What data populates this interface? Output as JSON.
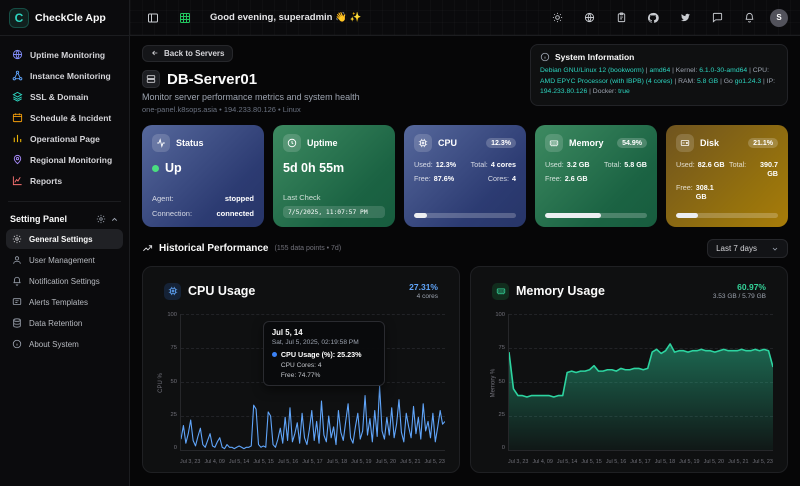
{
  "app": {
    "name": "CheckCle App",
    "logo_letter": "C"
  },
  "sidebar": {
    "nav": [
      {
        "label": "Uptime Monitoring",
        "icon": "globe-icon"
      },
      {
        "label": "Instance Monitoring",
        "icon": "nodes-icon"
      },
      {
        "label": "SSL & Domain",
        "icon": "layers-icon"
      },
      {
        "label": "Schedule & Incident",
        "icon": "calendar-icon"
      },
      {
        "label": "Operational Page",
        "icon": "bar-chart-icon"
      },
      {
        "label": "Regional Monitoring",
        "icon": "map-pin-icon"
      },
      {
        "label": "Reports",
        "icon": "report-chart-icon"
      }
    ],
    "settings_header": "Setting Panel",
    "settings": [
      {
        "label": "General Settings",
        "icon": "gear-icon",
        "active": true
      },
      {
        "label": "User Management",
        "icon": "user-icon",
        "active": false
      },
      {
        "label": "Notification Settings",
        "icon": "bell-icon",
        "active": false
      },
      {
        "label": "Alerts Templates",
        "icon": "template-icon",
        "active": false
      },
      {
        "label": "Data Retention",
        "icon": "database-icon",
        "active": false
      },
      {
        "label": "About System",
        "icon": "info-icon",
        "active": false
      }
    ]
  },
  "header": {
    "greeting": "Good evening, superadmin 👋 ✨",
    "avatar_initial": "S"
  },
  "page": {
    "back_button": "Back to Servers",
    "server_name": "DB-Server01",
    "subtitle": "Monitor server performance metrics and system health",
    "meta": "one-panel.k8sops.asia • 194.233.80.126 • Linux",
    "system_info": {
      "title": "System Information",
      "segments": [
        {
          "text": "Debian GNU/Linux 12 (bookworm)",
          "hl": true
        },
        {
          "text": " | ",
          "hl": false
        },
        {
          "text": "amd64",
          "hl": true
        },
        {
          "text": " | Kernel: ",
          "hl": false
        },
        {
          "text": "6.1.0-30-amd64",
          "hl": true
        },
        {
          "text": " | CPU: ",
          "hl": false
        },
        {
          "text": "AMD EPYC Processor (with IBPB) (4 cores)",
          "hl": true
        },
        {
          "text": " | RAM: ",
          "hl": false
        },
        {
          "text": "5.8 GB",
          "hl": true
        },
        {
          "text": " | Go ",
          "hl": false
        },
        {
          "text": "go1.24.3",
          "hl": true
        },
        {
          "text": " | IP: ",
          "hl": false
        },
        {
          "text": "194.233.80.126",
          "hl": true
        },
        {
          "text": " | Docker: ",
          "hl": false
        },
        {
          "text": "true",
          "hl": true
        }
      ]
    }
  },
  "cards": {
    "status": {
      "title": "Status",
      "value": "Up",
      "agent_label": "Agent:",
      "agent": "stopped",
      "conn_label": "Connection:",
      "conn": "connected"
    },
    "uptime": {
      "title": "Uptime",
      "value": "5d 0h 55m",
      "last_check_label": "Last Check",
      "last_check": "7/5/2025, 11:07:57 PM"
    },
    "cpu": {
      "title": "CPU",
      "badge": "12.3%",
      "used_label": "Used:",
      "used": "12.3%",
      "total_label": "Total:",
      "total": "4 cores",
      "free_label": "Free:",
      "free": "87.6%",
      "cores_label": "Cores:",
      "cores": "4",
      "progress": 12.3
    },
    "memory": {
      "title": "Memory",
      "badge": "54.9%",
      "used_label": "Used:",
      "used": "3.2 GB",
      "total_label": "Total:",
      "total": "5.8 GB",
      "free_label": "Free:",
      "free": "2.6 GB",
      "progress": 54.9
    },
    "disk": {
      "title": "Disk",
      "badge": "21.1%",
      "used_label": "Used:",
      "used": "82.6 GB",
      "total_label": "Total:",
      "total": "390.7 GB",
      "free_label": "Free:",
      "free": "308.1 GB",
      "progress": 21.1
    }
  },
  "history": {
    "title": "Historical Performance",
    "subtitle": "(155 data points • 7d)",
    "range": "Last 7 days"
  },
  "chart_data": [
    {
      "type": "line",
      "title": "CPU Usage",
      "stat": "27.31%",
      "stat_sub": "4 cores",
      "ylabel": "CPU %",
      "ylim": [
        0,
        100
      ],
      "yticks": [
        100,
        75,
        50,
        25,
        0
      ],
      "grid": true,
      "color": "#60a5fa",
      "x_labels": [
        "Jul 3, 23",
        "Jul 4, 09",
        "Jul 5, 14",
        "Jul 5, 15",
        "Jul 5, 16",
        "Jul 5, 17",
        "Jul 5, 18",
        "Jul 5, 19",
        "Jul 5, 20",
        "Jul 5, 21",
        "Jul 5, 23"
      ],
      "values": [
        8,
        18,
        5,
        12,
        22,
        7,
        3,
        10,
        16,
        4,
        2,
        7,
        12,
        3,
        2,
        6,
        9,
        2,
        1,
        4,
        2,
        2,
        1,
        2,
        3,
        2,
        1,
        2,
        2,
        3,
        33,
        30,
        4,
        2,
        3,
        2,
        28,
        25,
        4,
        2,
        8,
        16,
        5,
        24,
        7,
        31,
        6,
        12,
        20,
        5,
        27,
        9,
        4,
        15,
        29,
        7,
        21,
        5,
        36,
        11,
        6,
        25,
        9,
        17,
        4,
        29,
        13,
        7,
        21,
        34,
        9,
        5,
        17,
        27,
        8,
        14,
        40,
        11,
        23,
        6,
        29,
        10,
        47,
        14,
        8,
        24,
        11,
        31,
        9,
        19,
        37,
        13,
        6,
        27,
        17,
        9,
        32,
        12,
        24,
        8,
        34,
        14,
        21,
        9,
        27,
        6,
        17,
        29,
        19,
        21
      ],
      "tooltip": {
        "title": "Jul 5, 14",
        "datetime": "Sat, Jul 5, 2025, 02:19:58 PM",
        "value_label": "CPU Usage (%): 25.23%",
        "cores": "CPU Cores: 4",
        "free": "Free: 74.77%"
      }
    },
    {
      "type": "area",
      "title": "Memory Usage",
      "stat": "60.97%",
      "stat_sub": "3.53 GB / 5.79 GB",
      "ylabel": "Memory %",
      "ylim": [
        0,
        100
      ],
      "yticks": [
        100,
        75,
        50,
        25,
        0
      ],
      "grid": true,
      "color": "#2dd4a0",
      "x_labels": [
        "Jul 3, 23",
        "Jul 4, 09",
        "Jul 5, 14",
        "Jul 5, 15",
        "Jul 5, 16",
        "Jul 5, 17",
        "Jul 5, 18",
        "Jul 5, 19",
        "Jul 5, 20",
        "Jul 5, 21",
        "Jul 5, 23"
      ],
      "values": [
        72,
        45,
        40,
        40,
        39,
        40,
        40,
        40,
        40,
        40,
        39,
        40,
        40,
        57,
        58,
        57,
        58,
        58,
        59,
        62,
        58,
        58,
        59,
        59,
        58,
        60,
        59,
        59,
        60,
        60,
        59,
        60,
        72,
        74,
        71,
        73,
        78,
        72,
        73,
        73,
        72,
        73,
        73,
        74,
        73,
        73,
        72,
        73,
        74,
        73,
        73,
        73,
        74,
        73,
        73,
        74,
        73,
        74,
        73,
        61
      ]
    }
  ]
}
